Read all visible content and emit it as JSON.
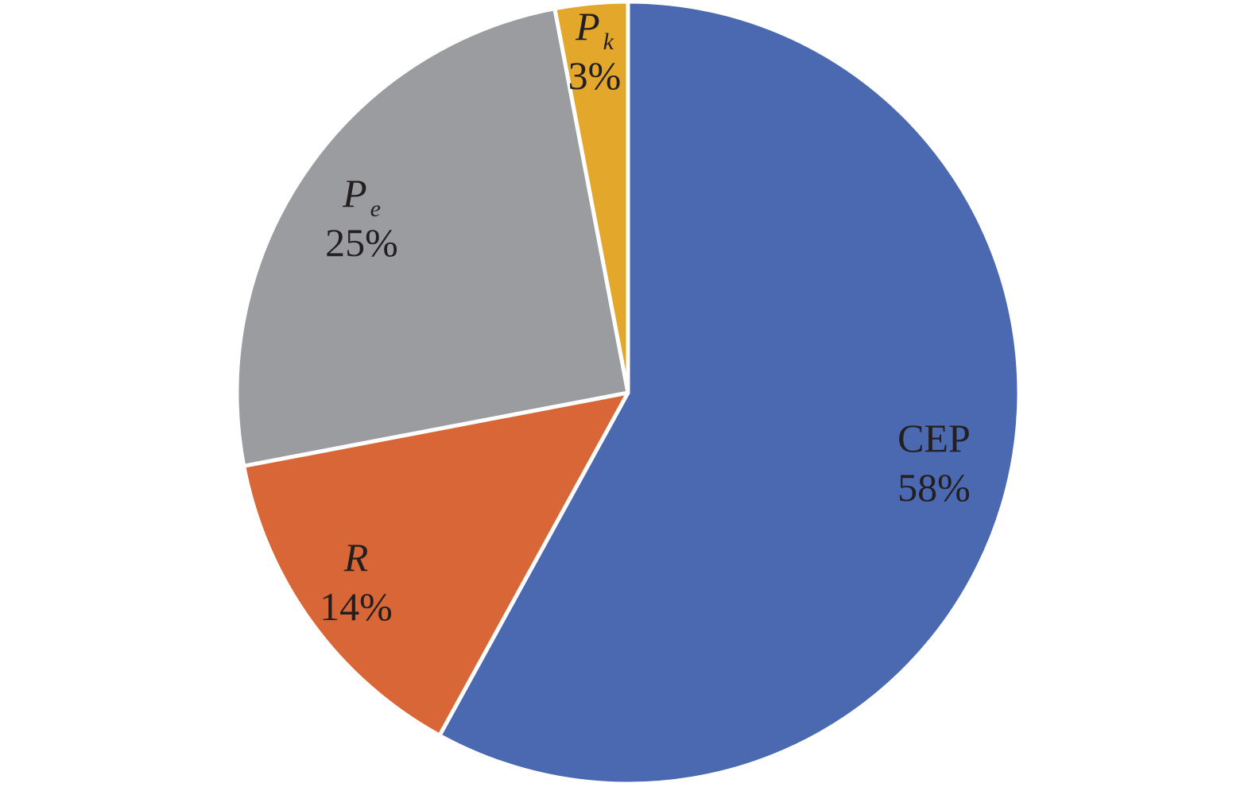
{
  "chart_data": {
    "type": "pie",
    "title": "",
    "start_angle_deg": 0,
    "direction": "clockwise",
    "slices": [
      {
        "name": "CEP",
        "base": "CEP",
        "sub": "",
        "italic": false,
        "value": 58,
        "label": "58%",
        "color": "#4a69b1"
      },
      {
        "name": "R",
        "base": "R",
        "sub": "",
        "italic": true,
        "value": 14,
        "label": "14%",
        "color": "#d86636"
      },
      {
        "name": "Pe",
        "base": "P",
        "sub": "e",
        "italic": true,
        "value": 25,
        "label": "25%",
        "color": "#9b9c9f"
      },
      {
        "name": "Pk",
        "base": "P",
        "sub": "k",
        "italic": true,
        "value": 3,
        "label": "3%",
        "color": "#e3a82b"
      }
    ],
    "legend": "none",
    "data_labels": "inside, category name above percentage"
  }
}
